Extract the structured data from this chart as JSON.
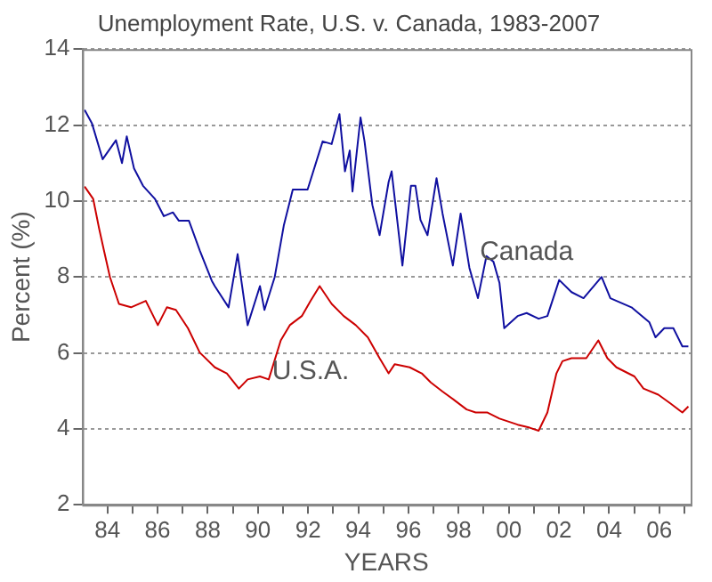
{
  "chart_data": {
    "type": "line",
    "title": "Unemployment Rate, U.S. v. Canada, 1983-2007",
    "xlabel": "YEARS",
    "ylabel": "Percent (%)",
    "xlim": [
      1983,
      2007.25
    ],
    "ylim": [
      2,
      14
    ],
    "yticks": [
      2,
      4,
      6,
      8,
      10,
      12,
      14
    ],
    "xticks": [
      {
        "value": 1984,
        "label": "84"
      },
      {
        "value": 1985,
        "label": null
      },
      {
        "value": 1986,
        "label": "86"
      },
      {
        "value": 1987,
        "label": null
      },
      {
        "value": 1988,
        "label": "88"
      },
      {
        "value": 1989,
        "label": null
      },
      {
        "value": 1990,
        "label": "90"
      },
      {
        "value": 1991,
        "label": null
      },
      {
        "value": 1992,
        "label": "92"
      },
      {
        "value": 1993,
        "label": null
      },
      {
        "value": 1994,
        "label": "94"
      },
      {
        "value": 1995,
        "label": null
      },
      {
        "value": 1996,
        "label": "96"
      },
      {
        "value": 1997,
        "label": null
      },
      {
        "value": 1998,
        "label": "98"
      },
      {
        "value": 1999,
        "label": null
      },
      {
        "value": 2000,
        "label": "00"
      },
      {
        "value": 2001,
        "label": null
      },
      {
        "value": 2002,
        "label": "02"
      },
      {
        "value": 2003,
        "label": null
      },
      {
        "value": 2004,
        "label": "04"
      },
      {
        "value": 2005,
        "label": null
      },
      {
        "value": 2006,
        "label": "06"
      },
      {
        "value": 2007,
        "label": null
      }
    ],
    "grid": "y",
    "marker": "none",
    "line_style": "solid",
    "series": [
      {
        "name": "Canada",
        "color": "#1010a0",
        "x": [
          1983.09,
          1983.38,
          1983.81,
          1984.34,
          1984.58,
          1984.77,
          1985.06,
          1985.42,
          1985.89,
          1986.25,
          1986.61,
          1986.85,
          1987.25,
          1987.68,
          1988.16,
          1988.28,
          1988.83,
          1989.19,
          1989.59,
          1990.08,
          1990.26,
          1990.67,
          1991.03,
          1991.39,
          1991.98,
          1992.58,
          1992.94,
          1993.25,
          1993.47,
          1993.66,
          1993.77,
          1994.09,
          1994.25,
          1994.56,
          1994.85,
          1995.21,
          1995.33,
          1995.76,
          1996.1,
          1996.28,
          1996.48,
          1996.76,
          1997.12,
          1997.36,
          1997.77,
          1998.08,
          1998.43,
          1998.77,
          1999.11,
          1999.39,
          1999.63,
          1999.82,
          2000.35,
          2000.71,
          2001.19,
          2001.54,
          2002.01,
          2002.5,
          2002.98,
          2003.7,
          2004.05,
          2004.89,
          2005.6,
          2005.85,
          2006.2,
          2006.56,
          2006.92,
          2007.16
        ],
        "values": [
          12.4,
          12.05,
          11.1,
          11.6,
          11.0,
          11.7,
          10.86,
          10.4,
          10.06,
          9.6,
          9.7,
          9.48,
          9.48,
          8.7,
          7.9,
          7.76,
          7.2,
          8.6,
          6.73,
          7.76,
          7.13,
          8.0,
          9.35,
          10.3,
          10.3,
          11.57,
          11.5,
          12.29,
          10.78,
          11.33,
          10.25,
          12.2,
          11.57,
          9.9,
          9.1,
          10.5,
          10.78,
          8.3,
          10.4,
          10.4,
          9.5,
          9.1,
          10.6,
          9.67,
          8.3,
          9.67,
          8.24,
          7.44,
          8.55,
          8.4,
          7.84,
          6.65,
          6.97,
          7.05,
          6.9,
          6.97,
          7.92,
          7.6,
          7.44,
          8.0,
          7.44,
          7.2,
          6.81,
          6.41,
          6.65,
          6.65,
          6.17,
          6.17
        ]
      },
      {
        "name": "U.S.A.",
        "color": "#cc0000",
        "x": [
          1983.09,
          1983.43,
          1983.67,
          1983.86,
          1984.1,
          1984.46,
          1984.94,
          1985.53,
          1986.01,
          1986.37,
          1986.73,
          1987.21,
          1987.68,
          1988.28,
          1988.76,
          1989.24,
          1989.59,
          1990.08,
          1990.43,
          1990.91,
          1991.27,
          1991.75,
          1992.1,
          1992.46,
          1992.94,
          1993.42,
          1993.9,
          1994.38,
          1994.85,
          1995.21,
          1995.45,
          1996.05,
          1996.53,
          1996.89,
          1997.36,
          1997.84,
          1998.32,
          1998.68,
          1999.15,
          1999.63,
          2000.35,
          2000.83,
          2001.19,
          2001.54,
          2001.9,
          2002.14,
          2002.5,
          2003.09,
          2003.57,
          2003.93,
          2004.29,
          2005.01,
          2005.37,
          2005.96,
          2006.44,
          2006.92,
          2007.16
        ],
        "values": [
          10.38,
          10.06,
          9.27,
          8.7,
          8.0,
          7.29,
          7.2,
          7.37,
          6.73,
          7.2,
          7.13,
          6.65,
          6.01,
          5.62,
          5.46,
          5.06,
          5.3,
          5.38,
          5.3,
          6.33,
          6.73,
          6.97,
          7.37,
          7.76,
          7.29,
          6.97,
          6.73,
          6.41,
          5.86,
          5.46,
          5.7,
          5.62,
          5.46,
          5.22,
          4.98,
          4.75,
          4.51,
          4.43,
          4.43,
          4.27,
          4.11,
          4.03,
          3.95,
          4.43,
          5.46,
          5.78,
          5.86,
          5.86,
          6.33,
          5.86,
          5.62,
          5.38,
          5.06,
          4.9,
          4.67,
          4.43,
          4.59
        ]
      }
    ],
    "legend": false
  }
}
